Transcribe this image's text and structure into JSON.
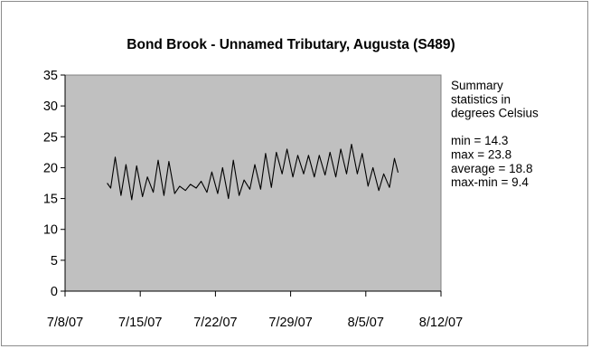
{
  "chart_data": {
    "type": "line",
    "title": "Bond Brook - Unnamed Tributary, Augusta (S489)",
    "xlabel": "",
    "ylabel": "",
    "ylim": [
      0,
      35
    ],
    "yticks": [
      0,
      5,
      10,
      15,
      20,
      25,
      30,
      35
    ],
    "xlim": [
      "2007-07-08",
      "2007-08-12"
    ],
    "xticks": [
      "2007-07-08",
      "2007-07-15",
      "2007-07-22",
      "2007-07-29",
      "2007-08-05",
      "2007-08-12"
    ],
    "xtick_labels": [
      "7/8/07",
      "7/15/07",
      "7/22/07",
      "7/29/07",
      "8/5/07",
      "8/12/07"
    ],
    "grid": false,
    "plot_background": "#c0c0c0",
    "line_color": "#000000",
    "series": [
      {
        "points": [
          [
            "2007-07-11T22:00",
            17.5
          ],
          [
            "2007-07-12T06:00",
            16.7
          ],
          [
            "2007-07-12T16:00",
            21.7
          ],
          [
            "2007-07-13T05:00",
            15.5
          ],
          [
            "2007-07-13T16:00",
            20.5
          ],
          [
            "2007-07-14T05:00",
            14.8
          ],
          [
            "2007-07-14T16:00",
            20.3
          ],
          [
            "2007-07-15T05:00",
            15.3
          ],
          [
            "2007-07-15T16:00",
            18.5
          ],
          [
            "2007-07-16T05:00",
            16.0
          ],
          [
            "2007-07-16T16:00",
            21.2
          ],
          [
            "2007-07-17T05:00",
            15.5
          ],
          [
            "2007-07-17T16:00",
            21.0
          ],
          [
            "2007-07-18T05:00",
            15.8
          ],
          [
            "2007-07-18T16:00",
            17.0
          ],
          [
            "2007-07-19T05:00",
            16.3
          ],
          [
            "2007-07-19T16:00",
            17.3
          ],
          [
            "2007-07-20T05:00",
            16.7
          ],
          [
            "2007-07-20T16:00",
            17.8
          ],
          [
            "2007-07-21T05:00",
            16.0
          ],
          [
            "2007-07-21T16:00",
            19.3
          ],
          [
            "2007-07-22T05:00",
            15.8
          ],
          [
            "2007-07-22T16:00",
            20.0
          ],
          [
            "2007-07-23T05:00",
            15.0
          ],
          [
            "2007-07-23T16:00",
            21.2
          ],
          [
            "2007-07-24T05:00",
            15.5
          ],
          [
            "2007-07-24T16:00",
            18.0
          ],
          [
            "2007-07-25T05:00",
            16.5
          ],
          [
            "2007-07-25T16:00",
            20.5
          ],
          [
            "2007-07-26T05:00",
            16.5
          ],
          [
            "2007-07-26T16:00",
            22.3
          ],
          [
            "2007-07-27T05:00",
            16.8
          ],
          [
            "2007-07-27T16:00",
            22.5
          ],
          [
            "2007-07-28T05:00",
            19.0
          ],
          [
            "2007-07-28T16:00",
            23.0
          ],
          [
            "2007-07-29T05:00",
            18.5
          ],
          [
            "2007-07-29T16:00",
            22.0
          ],
          [
            "2007-07-30T05:00",
            19.0
          ],
          [
            "2007-07-30T16:00",
            22.0
          ],
          [
            "2007-07-31T05:00",
            18.5
          ],
          [
            "2007-07-31T16:00",
            22.0
          ],
          [
            "2007-08-01T05:00",
            18.8
          ],
          [
            "2007-08-01T16:00",
            22.5
          ],
          [
            "2007-08-02T05:00",
            18.5
          ],
          [
            "2007-08-02T16:00",
            23.0
          ],
          [
            "2007-08-03T05:00",
            19.0
          ],
          [
            "2007-08-03T16:00",
            23.8
          ],
          [
            "2007-08-04T05:00",
            19.0
          ],
          [
            "2007-08-04T16:00",
            22.3
          ],
          [
            "2007-08-05T05:00",
            17.0
          ],
          [
            "2007-08-05T16:00",
            20.0
          ],
          [
            "2007-08-06T05:00",
            16.3
          ],
          [
            "2007-08-06T16:00",
            19.0
          ],
          [
            "2007-08-07T05:00",
            16.8
          ],
          [
            "2007-08-07T16:00",
            21.5
          ],
          [
            "2007-08-08T00:00",
            19.2
          ]
        ]
      }
    ],
    "annotation": {
      "lines": [
        "Summary",
        "statistics in",
        "degrees Celsius",
        "",
        "min = 14.3",
        "max = 23.8",
        "average = 18.8",
        "max-min = 9.4"
      ]
    }
  }
}
